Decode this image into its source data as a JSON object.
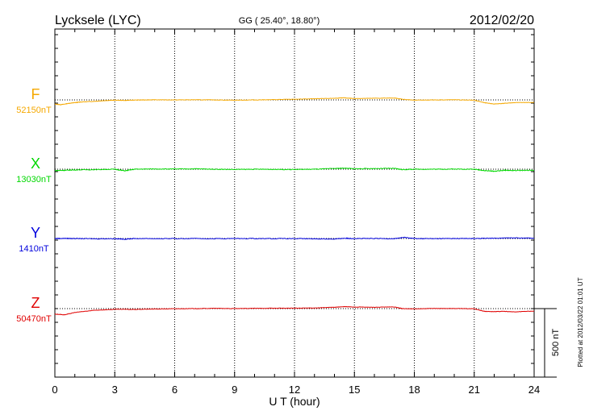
{
  "header": {
    "station": "Lycksele (LYC)",
    "coords": "GG ( 25.40°,  18.80°)",
    "date": "2012/02/20"
  },
  "footer_note": "Plotted at 2012/03/22 01:01  UT",
  "chart_data": {
    "type": "line",
    "title": "Lycksele (LYC)",
    "xlabel": "U T (hour)",
    "xlim": [
      0,
      24
    ],
    "x_ticks": [
      "0",
      "3",
      "6",
      "9",
      "12",
      "15",
      "18",
      "21",
      "24"
    ],
    "grid": true,
    "scale_bar": {
      "label": "500 nT",
      "value_nT": 500
    },
    "colors": {
      "F": "#f5a800",
      "X": "#00d800",
      "Y": "#0000dd",
      "Z": "#e00000"
    },
    "series": [
      {
        "name": "F",
        "baseline": "52150nT",
        "points": [
          [
            0,
            -30
          ],
          [
            0.3,
            -35
          ],
          [
            0.7,
            -25
          ],
          [
            1,
            -20
          ],
          [
            1.3,
            -15
          ],
          [
            2,
            -10
          ],
          [
            2.5,
            -5
          ],
          [
            3,
            -2
          ],
          [
            3.5,
            -4
          ],
          [
            4,
            -1
          ],
          [
            4.5,
            0
          ],
          [
            5,
            1
          ],
          [
            6,
            0
          ],
          [
            7,
            1
          ],
          [
            8,
            0
          ],
          [
            9,
            -2
          ],
          [
            10,
            0
          ],
          [
            11,
            2
          ],
          [
            12,
            5
          ],
          [
            13,
            8
          ],
          [
            14,
            12
          ],
          [
            14.5,
            15
          ],
          [
            15,
            10
          ],
          [
            16,
            12
          ],
          [
            17,
            14
          ],
          [
            17.4,
            5
          ],
          [
            18,
            -2
          ],
          [
            19,
            0
          ],
          [
            20,
            1
          ],
          [
            21,
            -2
          ],
          [
            21.5,
            -20
          ],
          [
            22,
            -30
          ],
          [
            22.5,
            -25
          ],
          [
            23,
            -20
          ],
          [
            24,
            -18
          ]
        ]
      },
      {
        "name": "X",
        "baseline": "13030nT",
        "points": [
          [
            0,
            -10
          ],
          [
            0.5,
            -8
          ],
          [
            1,
            -5
          ],
          [
            2,
            -3
          ],
          [
            3,
            0
          ],
          [
            3.5,
            -12
          ],
          [
            4,
            0
          ],
          [
            5,
            2
          ],
          [
            6,
            1
          ],
          [
            7,
            3
          ],
          [
            8,
            0
          ],
          [
            9,
            -2
          ],
          [
            10,
            0
          ],
          [
            11,
            -1
          ],
          [
            12,
            -2
          ],
          [
            13,
            0
          ],
          [
            14,
            5
          ],
          [
            14.5,
            8
          ],
          [
            15,
            3
          ],
          [
            16,
            5
          ],
          [
            17,
            6
          ],
          [
            17.4,
            -3
          ],
          [
            18,
            0
          ],
          [
            19,
            0
          ],
          [
            20,
            1
          ],
          [
            21,
            0
          ],
          [
            21.5,
            -10
          ],
          [
            22,
            -15
          ],
          [
            22.5,
            -8
          ],
          [
            23,
            -10
          ],
          [
            24,
            -8
          ]
        ]
      },
      {
        "name": "Y",
        "baseline": "1410nT",
        "points": [
          [
            0,
            0
          ],
          [
            0.5,
            1
          ],
          [
            1,
            0
          ],
          [
            2,
            -2
          ],
          [
            3,
            -1
          ],
          [
            3.5,
            -5
          ],
          [
            4,
            0
          ],
          [
            6,
            -1
          ],
          [
            8,
            -1
          ],
          [
            10,
            0
          ],
          [
            12,
            -1
          ],
          [
            13,
            -2
          ],
          [
            14,
            -4
          ],
          [
            14.5,
            2
          ],
          [
            15,
            0
          ],
          [
            16,
            0
          ],
          [
            17,
            -1
          ],
          [
            17.5,
            8
          ],
          [
            18,
            0
          ],
          [
            19,
            -1
          ],
          [
            20,
            0
          ],
          [
            21,
            0
          ],
          [
            22,
            2
          ],
          [
            23,
            5
          ],
          [
            24,
            3
          ]
        ]
      },
      {
        "name": "Z",
        "baseline": "50470nT",
        "points": [
          [
            0,
            -40
          ],
          [
            0.5,
            -45
          ],
          [
            1,
            -28
          ],
          [
            2,
            -12
          ],
          [
            3,
            -5
          ],
          [
            4,
            -6
          ],
          [
            5,
            -3
          ],
          [
            6,
            -1
          ],
          [
            7,
            0
          ],
          [
            8,
            2
          ],
          [
            9,
            0
          ],
          [
            10,
            2
          ],
          [
            11,
            3
          ],
          [
            12,
            3
          ],
          [
            13,
            5
          ],
          [
            14,
            10
          ],
          [
            14.5,
            14
          ],
          [
            15,
            12
          ],
          [
            16,
            10
          ],
          [
            17,
            12
          ],
          [
            17.4,
            0
          ],
          [
            18,
            -2
          ],
          [
            19,
            1
          ],
          [
            20,
            1
          ],
          [
            21,
            -1
          ],
          [
            21.5,
            -20
          ],
          [
            22,
            -22
          ],
          [
            22.5,
            -20
          ],
          [
            23,
            -24
          ],
          [
            24,
            -18
          ]
        ]
      }
    ]
  }
}
